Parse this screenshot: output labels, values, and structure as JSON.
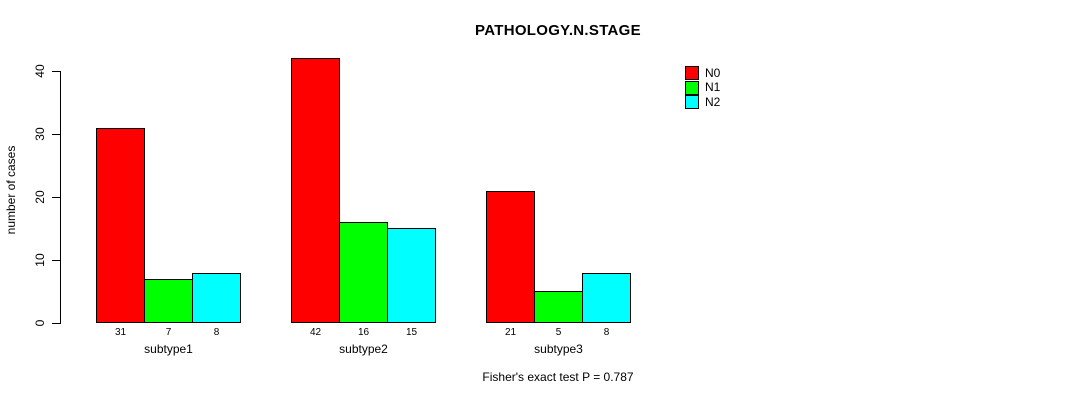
{
  "chart_data": {
    "type": "bar",
    "title": "PATHOLOGY.N.STAGE",
    "categories": [
      "subtype1",
      "subtype2",
      "subtype3"
    ],
    "series": [
      {
        "name": "N0",
        "color": "#ff0000",
        "values": [
          31,
          42,
          21
        ]
      },
      {
        "name": "N1",
        "color": "#00ff00",
        "values": [
          7,
          16,
          5
        ]
      },
      {
        "name": "N2",
        "color": "#00ffff",
        "values": [
          8,
          15,
          8
        ]
      }
    ],
    "xlabel": "",
    "ylabel": "number of cases",
    "ylim": [
      0,
      40
    ],
    "yticks": [
      0,
      10,
      20,
      30,
      40
    ],
    "grid": false,
    "legend_position": "top-right",
    "bar_value_labels": true,
    "annotation": "Fisher's exact test P = 0.787"
  },
  "colors": {
    "background": "#ffffff",
    "axis": "#000000",
    "text": "#000000"
  }
}
